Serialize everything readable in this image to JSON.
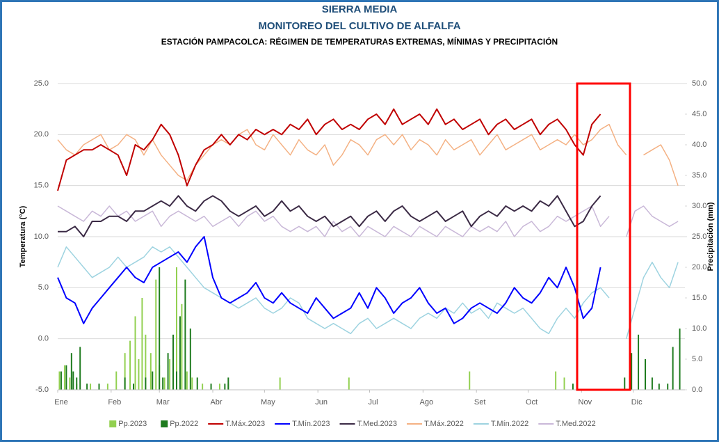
{
  "chart_data": {
    "type": "line",
    "title": "SIERRA MEDIA",
    "subtitle": "MONITOREO DEL CULTIVO DE ALFALFA",
    "caption": "ESTACIÓN PAMPACOLCA: RÉGIMEN DE TEMPERATURAS EXTREMAS, MÍNIMAS Y PRECIPITACIÓN",
    "ylabel": "Temperatura (°C)",
    "y2label": "Precipitación (mm)",
    "xlim": [
      1,
      365
    ],
    "xticks": [
      {
        "value": 1,
        "label": "Ene"
      },
      {
        "value": 32,
        "label": "Feb"
      },
      {
        "value": 60,
        "label": "Mar"
      },
      {
        "value": 91,
        "label": "Abr"
      },
      {
        "value": 121,
        "label": "May"
      },
      {
        "value": 152,
        "label": "Jun"
      },
      {
        "value": 182,
        "label": "Jul"
      },
      {
        "value": 213,
        "label": "Ago"
      },
      {
        "value": 244,
        "label": "Set"
      },
      {
        "value": 274,
        "label": "Oct"
      },
      {
        "value": 305,
        "label": "Nov"
      },
      {
        "value": 335,
        "label": "Dic"
      }
    ],
    "ylim": [
      -5,
      25
    ],
    "yticks": [
      {
        "value": -5,
        "label": "-5.0"
      },
      {
        "value": 0,
        "label": "0.0"
      },
      {
        "value": 5,
        "label": "5.0"
      },
      {
        "value": 10,
        "label": "10.0"
      },
      {
        "value": 15,
        "label": "15.0"
      },
      {
        "value": 20,
        "label": "20.0"
      },
      {
        "value": 25,
        "label": "25.0"
      }
    ],
    "y2lim": [
      0,
      50
    ],
    "y2ticks": [
      {
        "value": 0,
        "label": "0.0"
      },
      {
        "value": 5,
        "label": "5.0"
      },
      {
        "value": 10,
        "label": "10.0"
      },
      {
        "value": 15,
        "label": "15.0"
      },
      {
        "value": 20,
        "label": "20.0"
      },
      {
        "value": 25,
        "label": "25.0"
      },
      {
        "value": 30,
        "label": "30.0"
      },
      {
        "value": 35,
        "label": "35.0"
      },
      {
        "value": 40,
        "label": "40.0"
      },
      {
        "value": 45,
        "label": "45.0"
      },
      {
        "value": 50,
        "label": "50.0"
      }
    ],
    "grid": true,
    "legend": "bottom",
    "x": [
      1,
      6,
      11,
      16,
      21,
      26,
      31,
      36,
      41,
      46,
      51,
      56,
      61,
      66,
      71,
      76,
      81,
      86,
      91,
      96,
      101,
      106,
      111,
      116,
      121,
      126,
      131,
      136,
      141,
      146,
      151,
      156,
      161,
      166,
      171,
      176,
      181,
      186,
      191,
      196,
      201,
      206,
      211,
      216,
      221,
      226,
      231,
      236,
      241,
      246,
      251,
      256,
      261,
      266,
      271,
      276,
      281,
      286,
      291,
      296,
      301,
      306,
      311,
      316,
      321,
      326,
      331,
      336,
      341,
      346,
      351,
      356,
      361
    ],
    "series": [
      {
        "name": "Pp.2023",
        "type": "bar",
        "axis": "y2",
        "color": "#92d050",
        "x": [
          2,
          5,
          8,
          12,
          20,
          30,
          35,
          40,
          43,
          46,
          48,
          50,
          52,
          55,
          58,
          60,
          63,
          66,
          70,
          73,
          76,
          79,
          85,
          95,
          100,
          130,
          170,
          240,
          290,
          295
        ],
        "values": [
          3,
          4,
          2,
          1,
          1,
          1,
          3,
          6,
          8,
          12,
          5,
          15,
          9,
          6,
          18,
          4,
          2,
          5,
          20,
          14,
          3,
          2,
          1,
          1,
          1,
          2,
          2,
          3,
          3,
          2
        ]
      },
      {
        "name": "Pp.2022",
        "type": "bar",
        "axis": "y2",
        "color": "#1e7b1e",
        "x": [
          3,
          6,
          9,
          10,
          12,
          14,
          18,
          25,
          40,
          45,
          52,
          56,
          60,
          62,
          65,
          68,
          70,
          72,
          75,
          78,
          82,
          90,
          98,
          100,
          300,
          330,
          334,
          338,
          342,
          346,
          350,
          355,
          358,
          362
        ],
        "values": [
          3,
          4,
          6,
          3,
          2,
          7,
          1,
          1,
          2,
          1,
          2,
          3,
          20,
          2,
          6,
          9,
          3,
          12,
          18,
          10,
          2,
          1,
          1,
          2,
          1,
          2,
          6,
          9,
          5,
          2,
          1,
          1,
          7,
          10
        ]
      },
      {
        "name": "T.Máx.2023",
        "color": "#c00000",
        "width": 2,
        "values": [
          14.5,
          17.5,
          18,
          18.5,
          18.5,
          19,
          18.5,
          18,
          16,
          19,
          18.5,
          19.5,
          21,
          20,
          18,
          15,
          17,
          18.5,
          19,
          20,
          19,
          20,
          19.5,
          20.5,
          20,
          20.5,
          20,
          21,
          20.5,
          21.5,
          20,
          21,
          21.5,
          20.5,
          21,
          20.5,
          21.5,
          22,
          21,
          22.5,
          21,
          21.5,
          22,
          21,
          22.5,
          21,
          21.5,
          20.5,
          21,
          21.5,
          20,
          21,
          21.5,
          20.5,
          21,
          21.5,
          20,
          21,
          21.5,
          20.5,
          19,
          18,
          21,
          22,
          null,
          null,
          null,
          null,
          null,
          null,
          null,
          null,
          null
        ]
      },
      {
        "name": "T.Mín.2023",
        "color": "#0000ff",
        "width": 2,
        "values": [
          6,
          4,
          3.5,
          1.5,
          3,
          4,
          5,
          6,
          7,
          6,
          5.5,
          7,
          7.5,
          8,
          8.5,
          7.5,
          9,
          10,
          6,
          4,
          3.5,
          4,
          4.5,
          5.5,
          4,
          3.5,
          4.5,
          3.5,
          3,
          2.5,
          4,
          3,
          2,
          2.5,
          3,
          4.5,
          3,
          5,
          4,
          2.5,
          3.5,
          4,
          5,
          3.5,
          2.5,
          3,
          1.5,
          2,
          3,
          3.5,
          3,
          2.5,
          3.5,
          5,
          4,
          3.5,
          4.5,
          6,
          5,
          7,
          5,
          2,
          3,
          7,
          null,
          null,
          null,
          null,
          null,
          null,
          null,
          null,
          null
        ]
      },
      {
        "name": "T.Med.2023",
        "color": "#3b2a45",
        "width": 2,
        "values": [
          10.5,
          10.5,
          11,
          10,
          11.5,
          11.5,
          12,
          12,
          11.5,
          12.5,
          12.5,
          13,
          13.5,
          13,
          14,
          13,
          12.5,
          13.5,
          14,
          13.5,
          12.5,
          12,
          12.5,
          13,
          12,
          12.5,
          13.5,
          12.5,
          13,
          12,
          11.5,
          12,
          11,
          11.5,
          12,
          11,
          12,
          12.5,
          11.5,
          12.5,
          13,
          12,
          11.5,
          12,
          12.5,
          11.5,
          12,
          12.5,
          11,
          12,
          12.5,
          12,
          13,
          12.5,
          13,
          12.5,
          13.5,
          13,
          14,
          12.5,
          11,
          11.5,
          13,
          14,
          null,
          null,
          null,
          null,
          null,
          null,
          null,
          null,
          null
        ]
      },
      {
        "name": "T.Máx.2022",
        "color": "#f4b183",
        "width": 1.5,
        "values": [
          19.5,
          18.5,
          18,
          19,
          19.5,
          20,
          18.5,
          19,
          20,
          19.5,
          18,
          19.5,
          18,
          17,
          16,
          15.5,
          17,
          18,
          19,
          19.5,
          19,
          20,
          20.5,
          19,
          18.5,
          20,
          19,
          18,
          19.5,
          18.5,
          18,
          19,
          17,
          18,
          19.5,
          19,
          18,
          19.5,
          20,
          19,
          20,
          18.5,
          19.5,
          19,
          18,
          19.5,
          18.5,
          19,
          19.5,
          18,
          19,
          20,
          18.5,
          19,
          19.5,
          20,
          18.5,
          19,
          19.5,
          19,
          20,
          19,
          19.5,
          20.5,
          21,
          19,
          18,
          null,
          18,
          18.5,
          19,
          17.5,
          15
        ]
      },
      {
        "name": "T.Mín.2022",
        "color": "#9dd3e0",
        "width": 1.5,
        "values": [
          7,
          9,
          8,
          7,
          6,
          6.5,
          7,
          8,
          7,
          7.5,
          8,
          9,
          8.5,
          9,
          8,
          7,
          6,
          5,
          4.5,
          4,
          3.5,
          3,
          3.5,
          4,
          3,
          2.5,
          3,
          4,
          3.5,
          2,
          1.5,
          1,
          1.5,
          1,
          0.5,
          1.5,
          2,
          1,
          1.5,
          2,
          1.5,
          1,
          2,
          2.5,
          2,
          3,
          2.5,
          3.5,
          2.5,
          3,
          2,
          3.5,
          3,
          2.5,
          3,
          2,
          1,
          0.5,
          2,
          3,
          2,
          3.5,
          4.5,
          5,
          4,
          null,
          0,
          3,
          6,
          7.5,
          6,
          5,
          7.5
        ]
      },
      {
        "name": "T.Med.2022",
        "color": "#c9b8d8",
        "width": 1.5,
        "values": [
          13,
          12.5,
          12,
          11.5,
          12.5,
          12,
          13,
          12,
          12.5,
          11.5,
          12,
          12.5,
          11,
          12,
          12.5,
          12,
          11.5,
          12,
          11,
          11.5,
          12,
          11,
          12,
          12.5,
          11.5,
          12,
          11,
          10.5,
          11,
          10.5,
          11,
          10,
          11.5,
          10.5,
          11,
          10,
          11,
          10.5,
          10,
          11,
          10.5,
          10,
          11,
          10.5,
          10,
          11,
          10.5,
          10,
          11,
          10.5,
          11,
          10.5,
          11.5,
          10,
          11,
          11.5,
          10.5,
          11,
          12,
          11.5,
          12,
          12.5,
          13,
          11,
          12,
          null,
          10,
          12.5,
          13,
          12,
          11.5,
          11,
          11.5
        ]
      }
    ]
  }
}
